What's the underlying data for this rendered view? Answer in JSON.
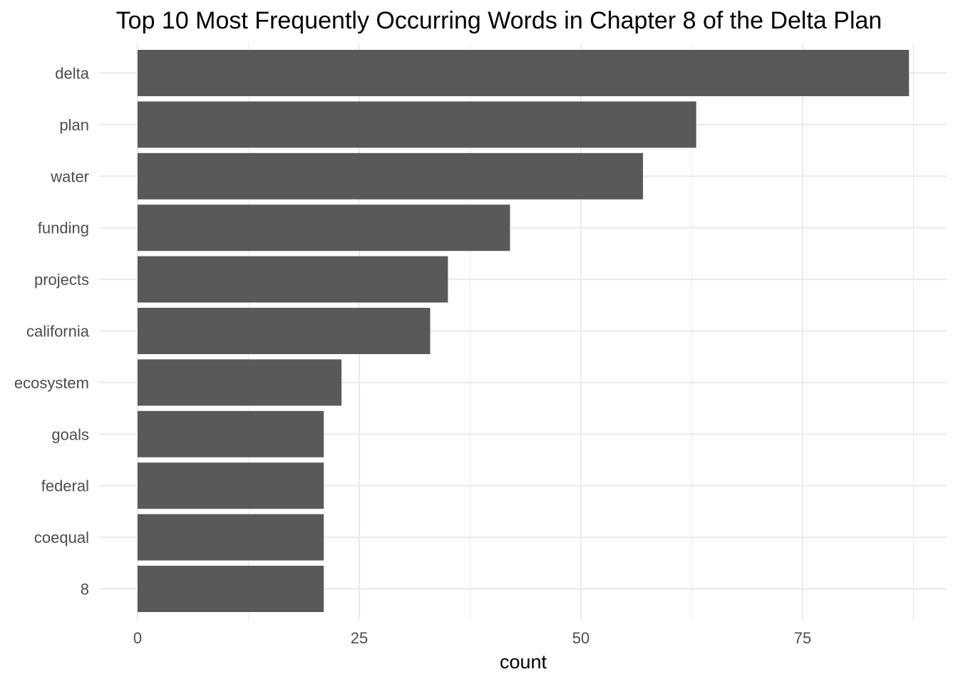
{
  "chart_data": {
    "type": "bar",
    "orientation": "horizontal",
    "title": "Top 10 Most Frequently Occurring Words in Chapter 8 of the Delta Plan",
    "xlabel": "count",
    "ylabel": "",
    "categories": [
      "delta",
      "plan",
      "water",
      "funding",
      "projects",
      "california",
      "ecosystem",
      "goals",
      "federal",
      "coequal",
      "8"
    ],
    "values": [
      87,
      63,
      57,
      42,
      35,
      33,
      23,
      21,
      21,
      21,
      21
    ],
    "xlim": [
      0,
      87
    ],
    "x_ticks": [
      0,
      25,
      50,
      75
    ],
    "x_tick_labels": [
      "0",
      "25",
      "50",
      "75"
    ],
    "bar_color": "#595959",
    "grid": true,
    "legend": "none"
  }
}
